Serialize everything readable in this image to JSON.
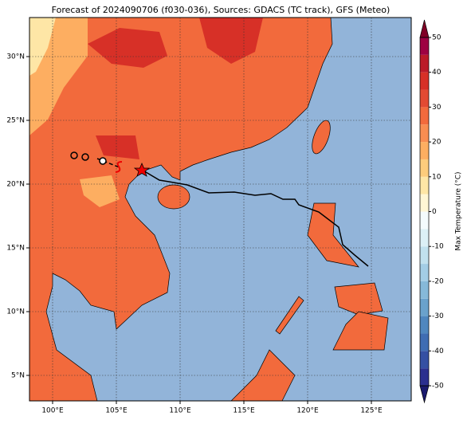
{
  "map": {
    "title": "Forecast of 2024090706 (f030-036), Sources: GDACS (TC track), GFS (Meteo)",
    "lat_ticks": [
      {
        "value": 5,
        "label": "5°N"
      },
      {
        "value": 10,
        "label": "10°N"
      },
      {
        "value": 15,
        "label": "15°N"
      },
      {
        "value": 20,
        "label": "20°N"
      },
      {
        "value": 25,
        "label": "25°N"
      },
      {
        "value": 30,
        "label": "30°N"
      }
    ],
    "lon_ticks": [
      {
        "value": 100,
        "label": "100°E"
      },
      {
        "value": 105,
        "label": "105°E"
      },
      {
        "value": 110,
        "label": "110°E"
      },
      {
        "value": 115,
        "label": "115°E"
      },
      {
        "value": 120,
        "label": "120°E"
      },
      {
        "value": 125,
        "label": "125°E"
      }
    ],
    "grid": true,
    "colorbar": {
      "label": "Max Temperature (°C)",
      "lim": [
        -50,
        50
      ],
      "ticks": [
        -50,
        -40,
        -30,
        -20,
        -10,
        0,
        10,
        20,
        30,
        40,
        50
      ],
      "colors": [
        "#2b2f8f",
        "#3550a3",
        "#3f6db3",
        "#4f87bf",
        "#6aa2cc",
        "#86b9d9",
        "#a3cde5",
        "#c1e1ee",
        "#dcf0f6",
        "#f4fbfd",
        "#fff6d5",
        "#fee6a6",
        "#fdcc7c",
        "#fdae61",
        "#f88d51",
        "#f26a3c",
        "#e34a33",
        "#d73027",
        "#bb1a28",
        "#9e0142"
      ],
      "under_color": "#1a1a6e",
      "over_color": "#7f0026"
    }
  }
}
